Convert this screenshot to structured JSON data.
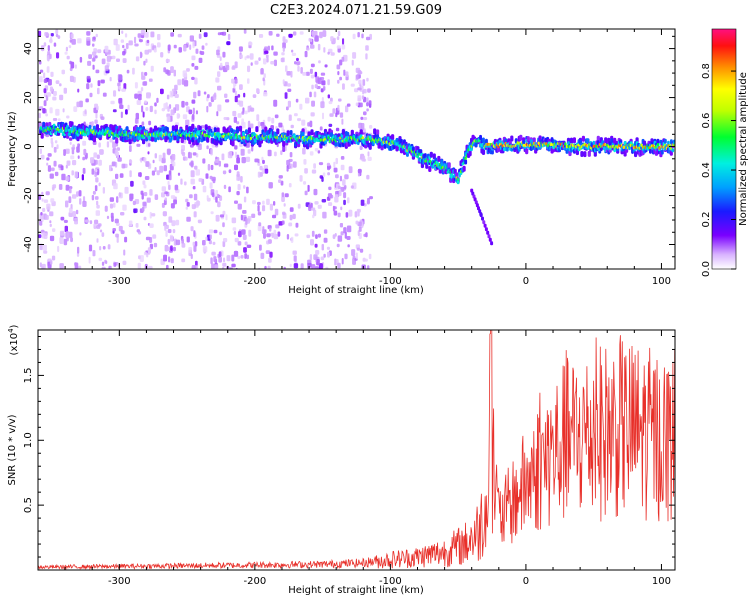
{
  "title": "C2E3.2024.071.21.59.G09",
  "chart_data": [
    {
      "type": "heatmap",
      "name": "spectrogram",
      "xlabel": "Height of straight line (km)",
      "ylabel": "Frequency (Hz)",
      "xlim": [
        -360,
        110
      ],
      "ylim": [
        -50,
        48
      ],
      "xticks": [
        -300,
        -200,
        -100,
        0,
        100
      ],
      "yticks": [
        -40,
        -20,
        0,
        20,
        40
      ],
      "colorbar": {
        "label": "Normalized spectral amplitude",
        "ticks": [
          "0.0",
          "0.2",
          "0.4",
          "0.6",
          "0.8"
        ],
        "range": [
          0,
          0.97
        ]
      },
      "ridge": {
        "description_points": [
          {
            "x": -350,
            "y": 7
          },
          {
            "x": -300,
            "y": 5
          },
          {
            "x": -250,
            "y": 5
          },
          {
            "x": -200,
            "y": 4
          },
          {
            "x": -150,
            "y": 3
          },
          {
            "x": -110,
            "y": 3
          },
          {
            "x": -90,
            "y": 0
          },
          {
            "x": -75,
            "y": -5
          },
          {
            "x": -60,
            "y": -9
          },
          {
            "x": -50,
            "y": -13
          },
          {
            "x": -45,
            "y": -5
          },
          {
            "x": -38,
            "y": 3
          },
          {
            "x": -30,
            "y": 0
          },
          {
            "x": 0,
            "y": 1
          },
          {
            "x": 50,
            "y": 0
          },
          {
            "x": 110,
            "y": 0
          }
        ],
        "side_branch": [
          {
            "x": -40,
            "y": -18
          },
          {
            "x": -33,
            "y": -28
          },
          {
            "x": -25,
            "y": -40
          }
        ]
      },
      "noise_band_xrange": [
        -360,
        -115
      ]
    },
    {
      "type": "line",
      "name": "snr",
      "xlabel": "Height of straight line (km)",
      "ylabel": "SNR (10 * v/v)",
      "y_multiplier_label": "(x10",
      "y_multiplier_exp": "4",
      "xlim": [
        -360,
        110
      ],
      "ylim": [
        0,
        1.85
      ],
      "xticks": [
        -300,
        -200,
        -100,
        0,
        100
      ],
      "yticks": [
        0.5,
        1.0,
        1.5
      ],
      "ytick_labels": [
        "0.5",
        "1.0",
        "1.5"
      ],
      "color": "#e8302a",
      "envelope": [
        {
          "x": -360,
          "y": 0.02
        },
        {
          "x": -250,
          "y": 0.03
        },
        {
          "x": -150,
          "y": 0.04
        },
        {
          "x": -120,
          "y": 0.05
        },
        {
          "x": -100,
          "y": 0.08
        },
        {
          "x": -80,
          "y": 0.1
        },
        {
          "x": -60,
          "y": 0.14
        },
        {
          "x": -45,
          "y": 0.2
        },
        {
          "x": -35,
          "y": 0.3
        },
        {
          "x": -28,
          "y": 0.55
        },
        {
          "x": -25,
          "y": 0.95
        },
        {
          "x": -20,
          "y": 0.4
        },
        {
          "x": -15,
          "y": 0.45
        },
        {
          "x": -5,
          "y": 0.6
        },
        {
          "x": 10,
          "y": 0.8
        },
        {
          "x": 30,
          "y": 1.0
        },
        {
          "x": 50,
          "y": 1.05
        },
        {
          "x": 70,
          "y": 1.1
        },
        {
          "x": 90,
          "y": 1.05
        },
        {
          "x": 110,
          "y": 1.0
        }
      ]
    }
  ]
}
